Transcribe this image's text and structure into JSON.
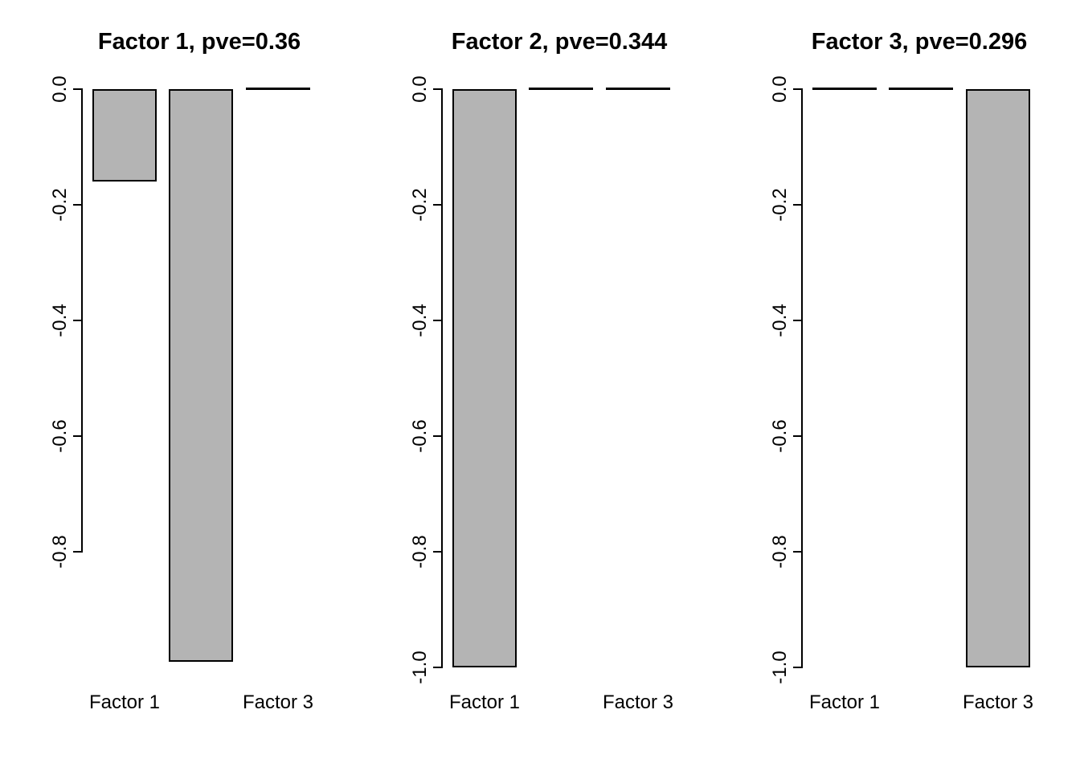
{
  "figure": {
    "background": "#ffffff",
    "bar_fill": "#b4b4b4",
    "bar_border": "#000000",
    "axis_color": "#000000",
    "text_color": "#000000"
  },
  "chart_data": [
    {
      "type": "bar",
      "title": "Factor 1, pve=0.36",
      "categories": [
        "Factor 1",
        "",
        "Factor 3"
      ],
      "values": [
        -0.16,
        -0.99,
        0
      ],
      "ytick_labels": [
        "0.0",
        "-0.2",
        "-0.4",
        "-0.6",
        "-0.8"
      ],
      "ytick_values": [
        0,
        -0.2,
        -0.4,
        -0.6,
        -0.8
      ],
      "ylim": [
        -1.0,
        0
      ],
      "grid": false,
      "legend": null
    },
    {
      "type": "bar",
      "title": "Factor 2, pve=0.344",
      "categories": [
        "Factor 1",
        "",
        "Factor 3"
      ],
      "values": [
        -1.0,
        0,
        0
      ],
      "ytick_labels": [
        "0.0",
        "-0.2",
        "-0.4",
        "-0.6",
        "-0.8",
        "-1.0"
      ],
      "ytick_values": [
        0,
        -0.2,
        -0.4,
        -0.6,
        -0.8,
        -1.0
      ],
      "ylim": [
        -1.0,
        0
      ],
      "grid": false,
      "legend": null
    },
    {
      "type": "bar",
      "title": "Factor 3, pve=0.296",
      "categories": [
        "Factor 1",
        "",
        "Factor 3"
      ],
      "values": [
        0,
        0,
        -1.0
      ],
      "ytick_labels": [
        "0.0",
        "-0.2",
        "-0.4",
        "-0.6",
        "-0.8",
        "-1.0"
      ],
      "ytick_values": [
        0,
        -0.2,
        -0.4,
        -0.6,
        -0.8,
        -1.0
      ],
      "ylim": [
        -1.0,
        0
      ],
      "grid": false,
      "legend": null
    }
  ]
}
